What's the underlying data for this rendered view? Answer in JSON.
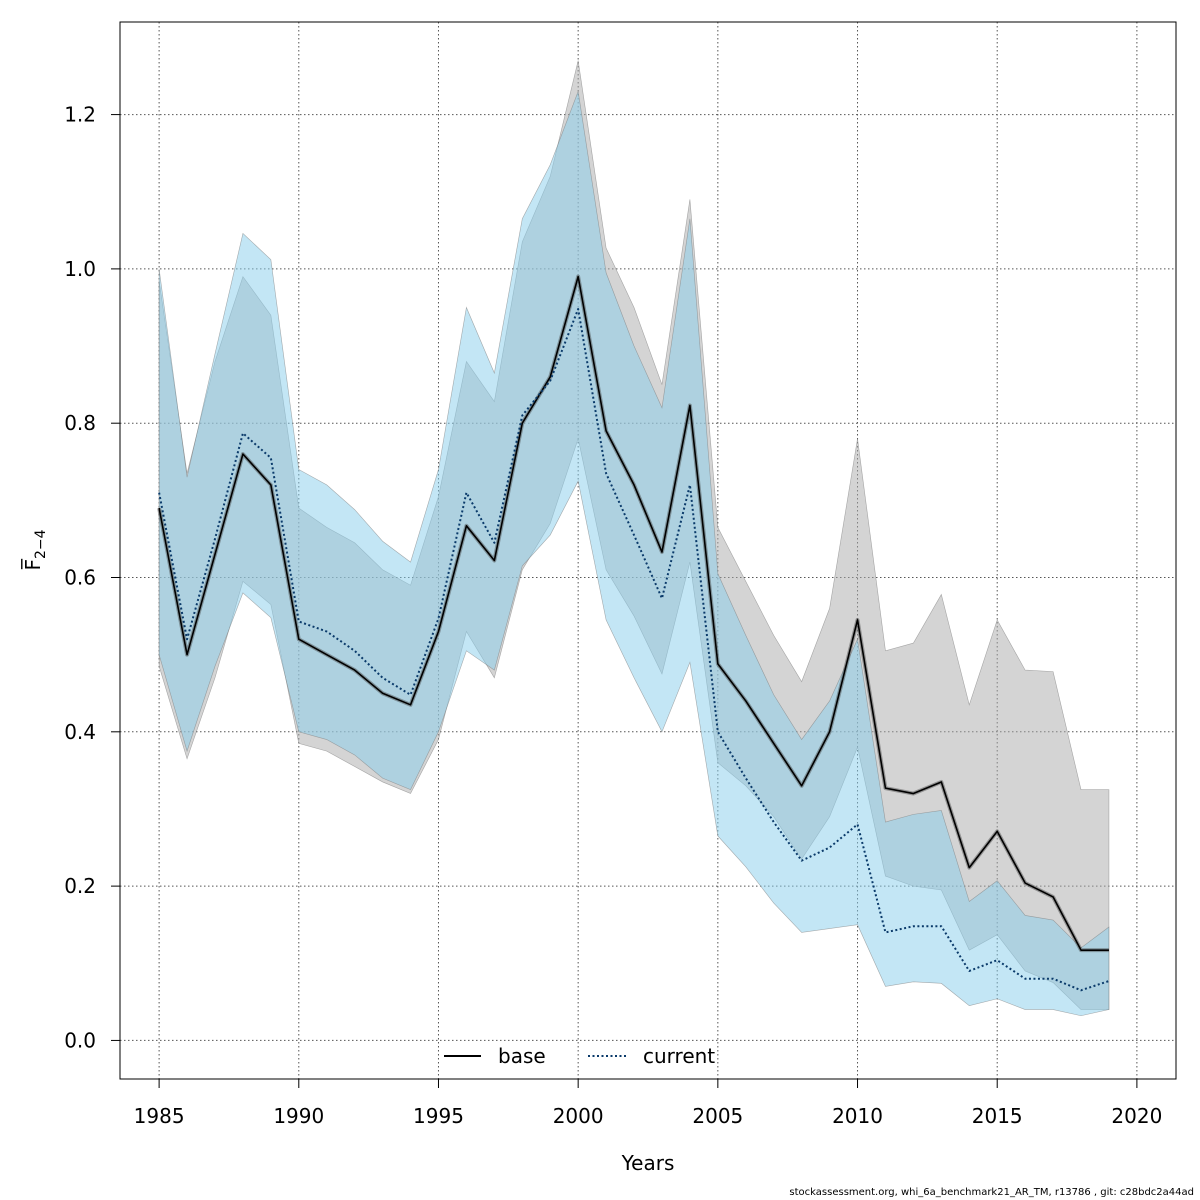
{
  "chart_data": {
    "type": "line",
    "xlabel": "Years",
    "ylabel": "F̅",
    "ylabel_sub": "2−4",
    "xlim": [
      1983.6,
      2021.4
    ],
    "ylim": [
      -0.05,
      1.32
    ],
    "xticks": [
      1985,
      1990,
      1995,
      2000,
      2005,
      2010,
      2015,
      2020
    ],
    "xtick_labels": [
      "1985",
      "1990",
      "1995",
      "2000",
      "2005",
      "2010",
      "2015",
      "2020"
    ],
    "yticks": [
      0.0,
      0.2,
      0.4,
      0.6,
      0.8,
      1.0,
      1.2
    ],
    "ytick_labels": [
      "0.0",
      "0.2",
      "0.4",
      "0.6",
      "0.8",
      "1.0",
      "1.2"
    ],
    "grid": true,
    "legend_position": "bottom-center",
    "x": [
      1985,
      1986,
      1987,
      1988,
      1989,
      1990,
      1991,
      1992,
      1993,
      1994,
      1995,
      1996,
      1997,
      1998,
      1999,
      2000,
      2001,
      2002,
      2003,
      2004,
      2005,
      2006,
      2007,
      2008,
      2009,
      2010,
      2011,
      2012,
      2013,
      2014,
      2015,
      2016,
      2017,
      2018,
      2019
    ],
    "series": [
      {
        "name": "base",
        "line_style": "solid",
        "color": "#000000",
        "band_color": "#a9a9a9",
        "values": [
          0.69,
          0.5,
          0.63,
          0.76,
          0.72,
          0.52,
          0.5,
          0.48,
          0.45,
          0.435,
          0.53,
          0.667,
          0.622,
          0.8,
          0.86,
          0.99,
          0.79,
          0.72,
          0.633,
          0.823,
          0.488,
          0.44,
          0.385,
          0.33,
          0.4,
          0.545,
          0.327,
          0.32,
          0.335,
          0.224,
          0.271,
          0.204,
          0.186,
          0.117,
          0.117
        ],
        "lower": [
          0.485,
          0.365,
          0.47,
          0.595,
          0.565,
          0.385,
          0.375,
          0.355,
          0.335,
          0.32,
          0.39,
          0.53,
          0.47,
          0.61,
          0.67,
          0.78,
          0.61,
          0.55,
          0.475,
          0.62,
          0.36,
          0.33,
          0.29,
          0.235,
          0.29,
          0.38,
          0.213,
          0.2,
          0.195,
          0.117,
          0.137,
          0.09,
          0.075,
          0.04,
          0.04
        ],
        "upper": [
          0.985,
          0.735,
          0.88,
          0.99,
          0.94,
          0.69,
          0.665,
          0.645,
          0.61,
          0.59,
          0.705,
          0.88,
          0.828,
          1.035,
          1.12,
          1.27,
          1.027,
          0.95,
          0.85,
          1.09,
          0.665,
          0.595,
          0.525,
          0.465,
          0.56,
          0.78,
          0.505,
          0.515,
          0.578,
          0.435,
          0.545,
          0.48,
          0.478,
          0.325,
          0.325
        ]
      },
      {
        "name": "current",
        "line_style": "dotted",
        "color": "#0a3a6a",
        "band_color": "#87ceeb",
        "values": [
          0.71,
          0.52,
          0.65,
          0.787,
          0.755,
          0.543,
          0.53,
          0.505,
          0.47,
          0.448,
          0.547,
          0.71,
          0.645,
          0.81,
          0.855,
          0.948,
          0.735,
          0.655,
          0.573,
          0.72,
          0.4,
          0.34,
          0.283,
          0.233,
          0.25,
          0.28,
          0.14,
          0.148,
          0.148,
          0.09,
          0.104,
          0.08,
          0.08,
          0.065,
          0.077
        ],
        "lower": [
          0.5,
          0.375,
          0.485,
          0.58,
          0.548,
          0.4,
          0.39,
          0.37,
          0.34,
          0.325,
          0.4,
          0.505,
          0.48,
          0.615,
          0.655,
          0.725,
          0.545,
          0.47,
          0.4,
          0.49,
          0.265,
          0.225,
          0.178,
          0.14,
          0.145,
          0.15,
          0.07,
          0.076,
          0.074,
          0.045,
          0.054,
          0.04,
          0.04,
          0.032,
          0.04
        ],
        "upper": [
          1.0,
          0.73,
          0.89,
          1.046,
          1.012,
          0.74,
          0.72,
          0.688,
          0.647,
          0.62,
          0.74,
          0.95,
          0.865,
          1.065,
          1.135,
          1.23,
          0.995,
          0.9,
          0.82,
          1.065,
          0.605,
          0.525,
          0.448,
          0.39,
          0.44,
          0.52,
          0.283,
          0.293,
          0.298,
          0.18,
          0.207,
          0.162,
          0.156,
          0.12,
          0.147
        ]
      }
    ]
  },
  "footer": "stockassessment.org, whi_6a_benchmark21_AR_TM, r13786 , git: c28bdc2a44ad"
}
